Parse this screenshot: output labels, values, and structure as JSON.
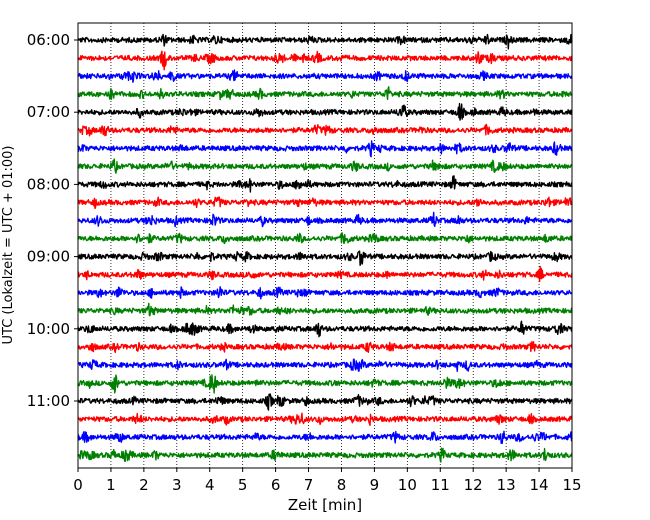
{
  "chart_data": {
    "type": "line",
    "xlabel": "Zeit  [min]",
    "ylabel": "UTC (Lokalzeit = UTC + 01:00)",
    "xlim": [
      0,
      15
    ],
    "x_ticks": [
      "0",
      "1",
      "2",
      "3",
      "4",
      "5",
      "6",
      "7",
      "8",
      "9",
      "10",
      "11",
      "12",
      "13",
      "14",
      "15"
    ],
    "y_tick_labels": [
      "06:00",
      "07:00",
      "08:00",
      "09:00",
      "10:00",
      "11:00"
    ],
    "y_tick_rows": [
      0,
      4,
      8,
      12,
      16,
      20
    ],
    "grid": "vertical dotted at each minute",
    "row_interval": "15 min",
    "row_colors": [
      "#000000",
      "#ff0000",
      "#0000ff",
      "#008000"
    ],
    "row_count": 24,
    "events": [
      {
        "row": 1,
        "x": 2.6,
        "amp": 1.6
      },
      {
        "row": 3,
        "x": 9.4,
        "amp": 1.0
      },
      {
        "row": 4,
        "x": 11.6,
        "amp": 1.0
      },
      {
        "row": 6,
        "x": 8.9,
        "amp": 1.0
      },
      {
        "row": 7,
        "x": 1.1,
        "amp": 1.0
      },
      {
        "row": 8,
        "x": 6.7,
        "amp": 1.0
      },
      {
        "row": 10,
        "x": 10.8,
        "amp": 1.1
      },
      {
        "row": 12,
        "x": 8.6,
        "amp": 1.6
      },
      {
        "row": 14,
        "x": 4.3,
        "amp": 1.0
      },
      {
        "row": 16,
        "x": 7.3,
        "amp": 1.2
      },
      {
        "row": 16,
        "x": 13.5,
        "amp": 1.1
      },
      {
        "row": 19,
        "x": 1.1,
        "amp": 1.1
      },
      {
        "row": 19,
        "x": 4.1,
        "amp": 1.8
      },
      {
        "row": 20,
        "x": 5.8,
        "amp": 1.2
      },
      {
        "row": 22,
        "x": 12.9,
        "amp": 1.0
      },
      {
        "row": 23,
        "x": 14.2,
        "amp": 1.0
      }
    ]
  }
}
